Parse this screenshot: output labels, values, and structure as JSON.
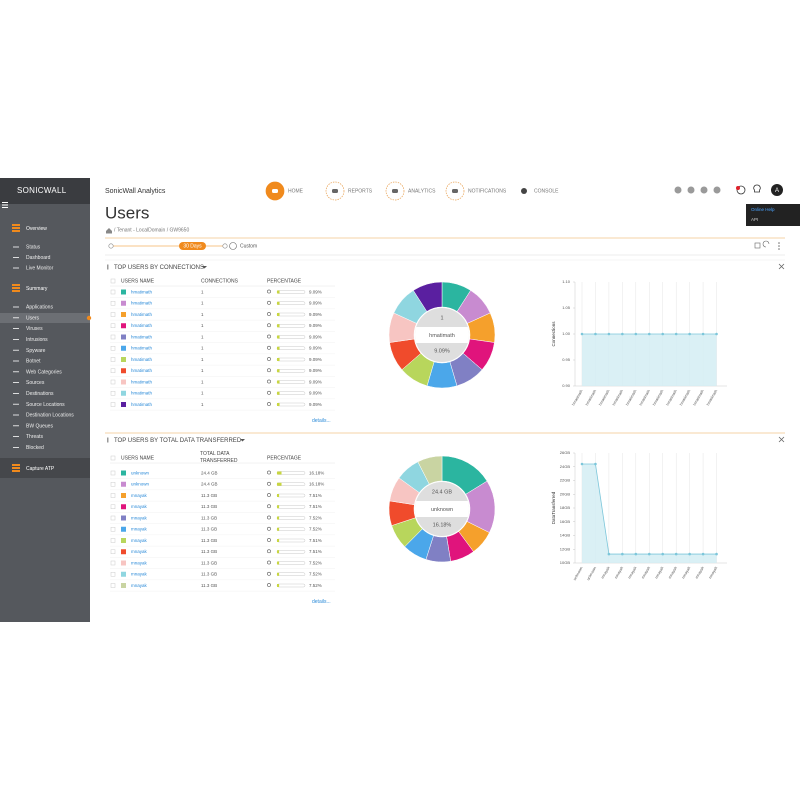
{
  "sidebar": {
    "logo": "SONICWALL",
    "overview": "Overview",
    "overview_items": [
      "Status",
      "Dashboard",
      "Live Monitor"
    ],
    "summary": "Summary",
    "summary_items": [
      "Applications",
      "Users",
      "Viruses",
      "Intrusions",
      "Spyware",
      "Botnet",
      "Web Categories",
      "Sources",
      "Destinations",
      "Source Locations",
      "Destination Locations",
      "BW Queues",
      "Threats",
      "Blocked"
    ],
    "capture": "Capture ATP"
  },
  "header": {
    "app": "SonicWall Analytics",
    "nav": [
      "HOME",
      "REPORTS",
      "ANALYTICS",
      "NOTIFICATIONS",
      "CONSOLE"
    ],
    "avatar": "A",
    "menu": [
      "Online Help",
      "API"
    ]
  },
  "page": {
    "title": "Users",
    "breadcrumb": "/ Tenant - LocalDomain / GW9650",
    "range": "30 Days",
    "custom": "Custom"
  },
  "tables": [
    {
      "title": "TOP USERS BY CONNECTIONS",
      "columns": [
        "USERS NAME",
        "CONNECTIONS",
        "PERCENTAGE"
      ],
      "values": [
        1,
        1,
        1,
        1,
        1,
        1,
        1,
        1,
        1,
        1,
        1
      ],
      "details": "details..."
    },
    {
      "title": "TOP USERS BY TOTAL DATA TRANSFERRED",
      "columns": [
        "USERS NAME",
        "TOTAL DATA TRANSFERRED",
        "PERCENTAGE"
      ],
      "values": [
        "24.4 GB",
        "24.4 GB",
        "11.3 GB",
        "11.3 GB",
        "11.3 GB",
        "11.3 GB",
        "11.3 GB",
        "11.3 GB",
        "11.3 GB",
        "11.3 GB",
        "11.3 GB"
      ],
      "details": "details..."
    }
  ],
  "chart_data": [
    {
      "type": "pie",
      "categories": [
        "hmatimath",
        "hmatimath",
        "hmatimath",
        "hmatimath",
        "hmatimath",
        "hmatimath",
        "hmatimath",
        "hmatimath",
        "hmatimath",
        "hmatimath",
        "hmatimath"
      ],
      "values": [
        9.09,
        9.09,
        9.09,
        9.09,
        9.09,
        9.09,
        9.09,
        9.09,
        9.09,
        9.09,
        9.09
      ],
      "value_labels": [
        "9.09%",
        "9.09%",
        "9.09%",
        "9.09%",
        "9.09%",
        "9.09%",
        "9.09%",
        "9.09%",
        "9.09%",
        "9.09%",
        "9.09%"
      ],
      "colors": [
        "#2bb5a0",
        "#c88bd0",
        "#f5a02c",
        "#e0147c",
        "#8080c4",
        "#4ba7ea",
        "#b8d65c",
        "#f04b2c",
        "#f7c5c2",
        "#8fd6e0",
        "#5a1fa0"
      ]
    },
    {
      "type": "line",
      "categories": [
        "hmatimath",
        "hmatimath",
        "hmatimath",
        "hmatimath",
        "hmatimath",
        "hmatimath",
        "hmatimath",
        "hmatimath",
        "hmatimath",
        "hmatimath",
        "hmatimath"
      ],
      "values": [
        1,
        1,
        1,
        1,
        1,
        1,
        1,
        1,
        1,
        1,
        1
      ],
      "ylim": [
        0.9,
        1.1
      ],
      "yticks": [
        {
          "value": 0.9,
          "label": "0.90"
        },
        0.95,
        {
          "value": 1,
          "label": "1.00"
        },
        1.05,
        {
          "value": 1.1,
          "label": "1.10"
        }
      ],
      "y_label": "Connections",
      "color": "#7cc6da",
      "grid": true
    },
    {
      "type": "pie",
      "categories": [
        "unknown",
        "unknown",
        "mnayak",
        "mnayak",
        "mnayak",
        "mnayak",
        "mnayak",
        "mnayak",
        "mnayak",
        "mnayak",
        "mnayak"
      ],
      "values": [
        16.18,
        16.18,
        7.51,
        7.51,
        7.52,
        7.52,
        7.51,
        7.51,
        7.52,
        7.52,
        7.52
      ],
      "value_labels": [
        "16.18%",
        "16.18%",
        "7.51%",
        "7.51%",
        "7.52%",
        "7.52%",
        "7.51%",
        "7.51%",
        "7.52%",
        "7.52%",
        "7.52%"
      ],
      "colors": [
        "#2bb5a0",
        "#c88bd0",
        "#f5a02c",
        "#e0147c",
        "#8080c4",
        "#4ba7ea",
        "#b8d65c",
        "#f04b2c",
        "#f7c5c2",
        "#8fd6e0",
        "#c9d4a2"
      ]
    },
    {
      "type": "line",
      "categories": [
        "unknown",
        "unknown",
        "mnayak",
        "mnayak",
        "mnayak",
        "mnayak",
        "mnayak",
        "mnayak",
        "mnayak",
        "mnayak",
        "mnayak"
      ],
      "values": [
        24.4,
        24.4,
        11.3,
        11.3,
        11.3,
        11.3,
        11.3,
        11.3,
        11.3,
        11.3,
        11.3
      ],
      "ylim": [
        10,
        26
      ],
      "yticks": [
        {
          "value": 10,
          "label": "10GB"
        },
        {
          "value": 12,
          "label": "12GB"
        },
        {
          "value": 14,
          "label": "14GB"
        },
        {
          "value": 16,
          "label": "16GB"
        },
        {
          "value": 18,
          "label": "18GB"
        },
        {
          "value": 20,
          "label": "20GB"
        },
        {
          "value": 22,
          "label": "22GB"
        },
        {
          "value": 24,
          "label": "24GB"
        },
        {
          "value": 26,
          "label": "26GB"
        }
      ],
      "y_label": "DataTransferred",
      "color": "#7cc6da",
      "grid": true
    }
  ]
}
